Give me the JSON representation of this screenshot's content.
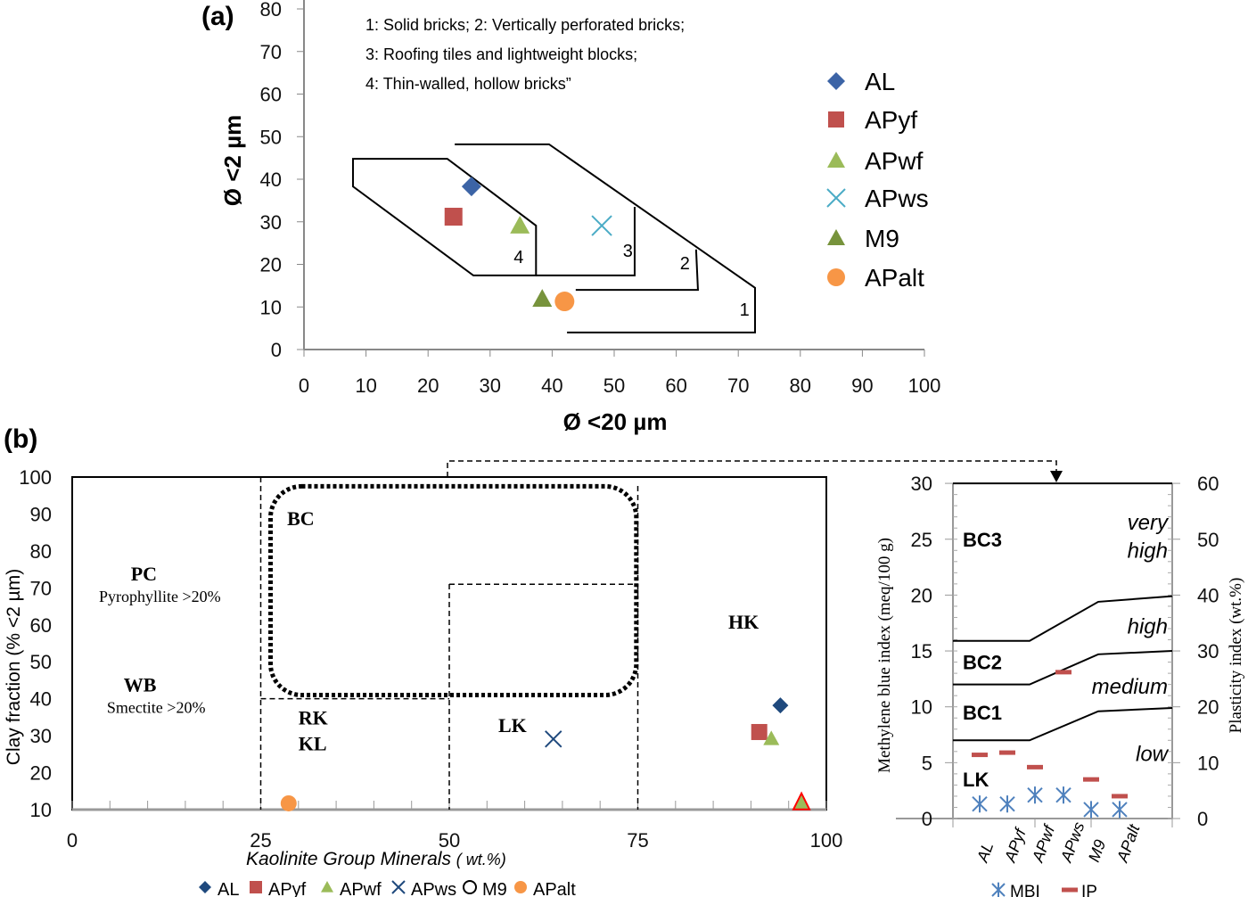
{
  "chart_data": [
    {
      "type": "scatter",
      "panel_label": "(a)",
      "xlabel": "Ø <20 µm",
      "ylabel": "Ø <2 µm",
      "xlim": [
        0,
        100
      ],
      "ylim": [
        0,
        80
      ],
      "xticks": [
        0,
        10,
        20,
        30,
        40,
        50,
        60,
        70,
        80,
        90,
        100
      ],
      "yticks": [
        0,
        10,
        20,
        30,
        40,
        50,
        60,
        70,
        80
      ],
      "notes": [
        "1: Solid bricks; 2: Vertically perforated bricks;",
        "3: Roofing tiles and lightweight blocks;",
        "4: Thin-walled, hollow bricks”"
      ],
      "series": [
        {
          "name": "AL",
          "marker": "diamond",
          "color": "#3c64a6",
          "x": 27,
          "y": 38.3
        },
        {
          "name": "APyf",
          "marker": "square",
          "color": "#c0504d",
          "x": 24.1,
          "y": 31.2
        },
        {
          "name": "APwf",
          "marker": "triangle",
          "color": "#9bbb59",
          "x": 34.8,
          "y": 29.1
        },
        {
          "name": "APws",
          "marker": "x",
          "color": "#4bacc6",
          "x": 48,
          "y": 29.1
        },
        {
          "name": "M9",
          "marker": "triangle",
          "color": "#77933c",
          "x": 38.4,
          "y": 11.9
        },
        {
          "name": "APalt",
          "marker": "circle",
          "color": "#f79646",
          "x": 42,
          "y": 11.3
        }
      ],
      "zones": [
        {
          "label": "4",
          "label_at": [
            34.6,
            20.3
          ],
          "closed": true,
          "points": [
            [
              7.9,
              44.8
            ],
            [
              23.1,
              44.8
            ],
            [
              37.4,
              29.1
            ],
            [
              37.4,
              17.4
            ],
            [
              27.3,
              17.4
            ],
            [
              7.9,
              38.3
            ]
          ]
        },
        {
          "label": "3",
          "label_at": [
            52.2,
            21.8
          ],
          "closed": false,
          "points": [
            [
              37.4,
              17.4
            ],
            [
              53.3,
              17.4
            ],
            [
              53.3,
              33.5
            ]
          ]
        },
        {
          "label": "2",
          "label_at": [
            61.4,
            18.8
          ],
          "closed": false,
          "points": [
            [
              43.8,
              14.0
            ],
            [
              63.5,
              14.0
            ],
            [
              63.2,
              23.5
            ]
          ]
        },
        {
          "label": "1",
          "label_at": [
            71,
            8
          ],
          "closed": false,
          "points": [
            [
              24.3,
              48.2
            ],
            [
              39.5,
              48.2
            ],
            [
              72.7,
              14.5
            ],
            [
              72.7,
              4.0
            ],
            [
              42.4,
              4.0
            ]
          ]
        }
      ]
    },
    {
      "type": "scatter",
      "panel_label": "(b)",
      "xlabel": "Kaolinite Group Minerals",
      "xlabel_unit": "( wt.%)",
      "ylabel": "Clay fraction (% <2 µm)",
      "xlim": [
        0,
        100
      ],
      "ylim": [
        10,
        100
      ],
      "xticks": [
        0,
        25,
        50,
        75,
        100
      ],
      "yticks": [
        10,
        20,
        30,
        40,
        50,
        60,
        70,
        80,
        90,
        100
      ],
      "regions": [
        {
          "label": "PC",
          "sub": "Pyrophyllite >20%",
          "at": [
            9.5,
            72
          ]
        },
        {
          "label": "WB",
          "sub": "Smectite >20%",
          "at": [
            9,
            42
          ]
        },
        {
          "label": "BC",
          "at": [
            28.5,
            87
          ]
        },
        {
          "label": "RK",
          "at": [
            30,
            33
          ]
        },
        {
          "label": "KL",
          "at": [
            30,
            26
          ]
        },
        {
          "label": "LK",
          "at": [
            56.5,
            31
          ]
        },
        {
          "label": "HK",
          "at": [
            87,
            59
          ]
        }
      ],
      "series": [
        {
          "name": "AL",
          "marker": "diamond",
          "color": "#1f497d",
          "x": 93.9,
          "y": 38.2
        },
        {
          "name": "APyf",
          "marker": "square",
          "color": "#c0504d",
          "x": 91.1,
          "y": 31
        },
        {
          "name": "APwf",
          "marker": "triangle",
          "color": "#9bbb59",
          "x": 92.7,
          "y": 29.2
        },
        {
          "name": "APws",
          "marker": "x",
          "color": "#1f497d",
          "x": 63.8,
          "y": 29.1
        },
        {
          "name": "M9",
          "marker": "circle-open",
          "color": "#000000",
          "x": 96.7,
          "y": 12
        },
        {
          "name": "APalt",
          "marker": "circle",
          "color": "#f79646",
          "x": 28.7,
          "y": 11.7
        }
      ]
    },
    {
      "type": "scatter",
      "ylabel": "Methylene blue index (meq/100 g)",
      "y2label": "Plasticity index (wt.%)",
      "ylim": [
        0,
        30
      ],
      "y2lim": [
        0,
        60
      ],
      "yticks": [
        0,
        5,
        10,
        15,
        20,
        25,
        30
      ],
      "y2ticks": [
        0,
        10,
        20,
        30,
        40,
        50,
        60
      ],
      "categories": [
        "AL",
        "APyf",
        "APwf",
        "APws",
        "M9",
        "APalt"
      ],
      "series": [
        {
          "name": "MBI",
          "marker": "asterisk",
          "color": "#4f81bd",
          "values": [
            1.3,
            1.3,
            2.1,
            2.1,
            0.8,
            0.8
          ]
        },
        {
          "name": "IP",
          "marker": "dash",
          "color": "#c0504d",
          "axis": "right",
          "values": [
            11.4,
            11.8,
            9.2,
            26.2,
            7,
            4
          ]
        }
      ],
      "boundaries": [
        [
          7,
          7,
          9.6,
          9.9
        ],
        [
          12,
          12,
          14.7,
          15
        ],
        [
          15.9,
          15.9,
          19.4,
          19.9
        ],
        [
          30,
          30,
          30,
          30
        ]
      ],
      "class_labels": [
        {
          "label": "BC3",
          "y": 25
        },
        {
          "label": "BC2",
          "y": 14
        },
        {
          "label": "BC1",
          "y": 9.5
        },
        {
          "label": "LK",
          "y": 3.5
        }
      ],
      "level_labels": [
        {
          "label": "very",
          "y": 26.5
        },
        {
          "label": "high",
          "y": 24
        },
        {
          "label": "high",
          "y": 17.2
        },
        {
          "label": "medium",
          "y": 11.8
        },
        {
          "label": "low",
          "y": 5.8
        }
      ]
    }
  ]
}
